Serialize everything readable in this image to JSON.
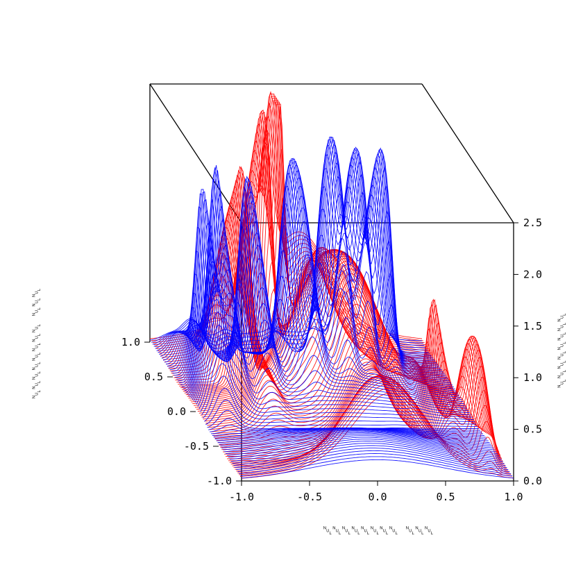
{
  "chart_data": {
    "type": "surface-3d",
    "title": "",
    "xlabel": "␀␀␀␀␀␀␀␀ ␀␀␀",
    "ylabel": "␀␀␀␀␀␀␀␀ ␀␀␀",
    "zlabel": "␀␀␀␀␀␀␀␀",
    "x_ticks": [
      "-1.0",
      "-0.5",
      "0.0",
      "0.5",
      "1.0"
    ],
    "y_ticks": [
      "-1.0",
      "-0.5",
      "0.0",
      "0.5",
      "1.0"
    ],
    "z_ticks": [
      "0.0",
      "0.5",
      "1.0",
      "1.5",
      "2.0",
      "2.5"
    ],
    "xlim": [
      -1,
      1
    ],
    "ylim": [
      -1,
      1
    ],
    "zlim": [
      0,
      2.5
    ],
    "series": [
      {
        "color": "#ff0000",
        "peaks": [
          {
            "x": -0.55,
            "y": 0.35,
            "height": 2.1,
            "width": 0.06
          },
          {
            "x": -0.3,
            "y": 0.6,
            "height": 2.4,
            "width": 0.05
          },
          {
            "x": -0.15,
            "y": 0.75,
            "height": 2.5,
            "width": 0.04
          },
          {
            "x": 0.1,
            "y": 0.2,
            "height": 1.3,
            "width": 0.2
          },
          {
            "x": 0.65,
            "y": -0.3,
            "height": 1.2,
            "width": 0.05
          },
          {
            "x": 0.85,
            "y": -0.6,
            "height": 1.1,
            "width": 0.05
          }
        ]
      },
      {
        "color": "#0000ff",
        "peaks": [
          {
            "x": -0.85,
            "y": 0.3,
            "height": 1.9,
            "width": 0.05
          },
          {
            "x": -0.7,
            "y": 0.45,
            "height": 2.0,
            "width": 0.05
          },
          {
            "x": -0.45,
            "y": 0.5,
            "height": 1.8,
            "width": 0.05
          },
          {
            "x": -0.1,
            "y": 0.55,
            "height": 1.9,
            "width": 0.06
          },
          {
            "x": 0.2,
            "y": 0.6,
            "height": 2.1,
            "width": 0.05
          },
          {
            "x": 0.4,
            "y": 0.65,
            "height": 2.0,
            "width": 0.05
          },
          {
            "x": 0.6,
            "y": 0.7,
            "height": 2.0,
            "width": 0.05
          }
        ]
      }
    ],
    "grid": false,
    "legend": "none"
  }
}
